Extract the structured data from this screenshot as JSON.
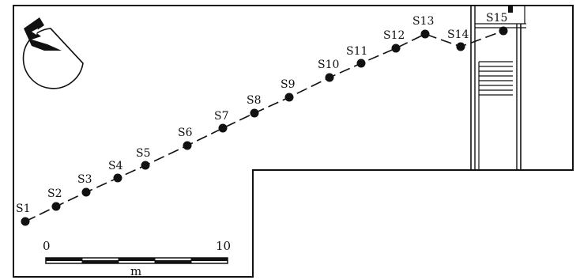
{
  "stations": [
    {
      "label": "S1"
    },
    {
      "label": "S2"
    },
    {
      "label": "S3"
    },
    {
      "label": "S4"
    },
    {
      "label": "S5"
    },
    {
      "label": "S6"
    },
    {
      "label": "S7"
    },
    {
      "label": "S8"
    },
    {
      "label": "S9"
    },
    {
      "label": "S10"
    },
    {
      "label": "S11"
    },
    {
      "label": "S12"
    },
    {
      "label": "S13"
    },
    {
      "label": "S14"
    },
    {
      "label": "S15"
    }
  ],
  "scale_bar": {
    "start_label": "0",
    "end_label": "10",
    "unit_label": "m"
  },
  "north_arrow": {
    "icon": "north-arrow-icon"
  },
  "colors": {
    "ink": "#111111",
    "paper": "#ffffff"
  }
}
